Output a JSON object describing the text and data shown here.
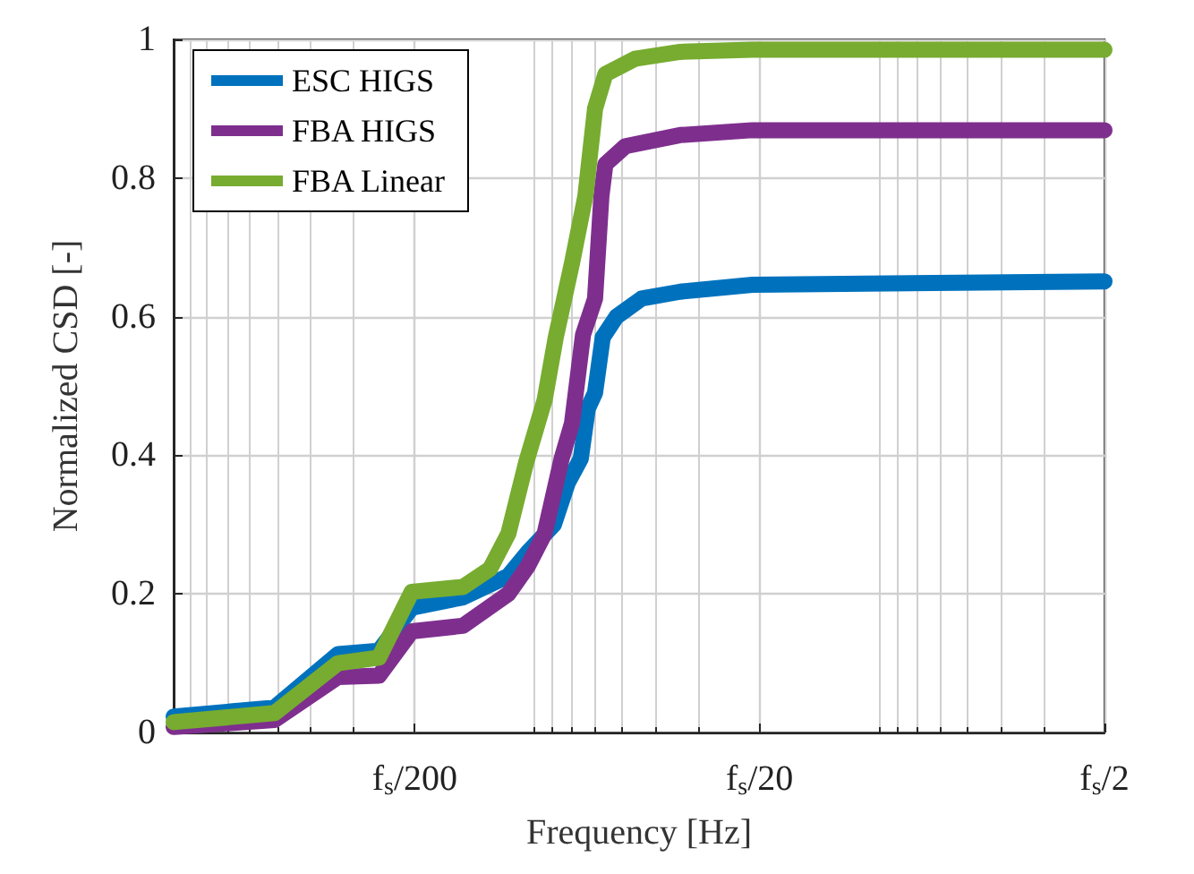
{
  "chart_data": {
    "type": "line",
    "xlabel": "Frequency [Hz]",
    "ylabel": "Normalized CSD [-]",
    "log": "x",
    "grid": true,
    "legend": "top left",
    "marker": "none",
    "line_style": "solid",
    "xlim": [
      1000,
      2
    ],
    "xticks": [
      {
        "value": 200,
        "label": "f$_{s}$/200"
      },
      {
        "value": 20,
        "label": "f$_{s}$/20"
      },
      {
        "value": 2,
        "label": "f$_{s}$/2"
      }
    ],
    "ylim": [
      0,
      1
    ],
    "yticks": [
      0,
      0.2,
      0.4,
      0.6,
      0.8,
      1
    ],
    "series": [
      {
        "name": "ESC HIGS",
        "color": "#0072bd",
        "x": [
          1000,
          510,
          334,
          254,
          204,
          145,
          107,
          94,
          79,
          72,
          66,
          63,
          60,
          57,
          52,
          44,
          34,
          21,
          2
        ],
        "values": [
          0.023,
          0.036,
          0.113,
          0.118,
          0.18,
          0.195,
          0.226,
          0.26,
          0.3,
          0.36,
          0.395,
          0.467,
          0.49,
          0.57,
          0.6,
          0.626,
          0.636,
          0.646,
          0.651
        ]
      },
      {
        "name": "FBA HIGS",
        "color": "#7e2f8e",
        "x": [
          1000,
          510,
          334,
          254,
          204,
          145,
          107,
          94,
          84,
          75,
          70,
          65,
          60,
          57.5,
          56,
          49,
          34,
          21,
          2
        ],
        "values": [
          0.008,
          0.018,
          0.08,
          0.082,
          0.146,
          0.154,
          0.2,
          0.24,
          0.287,
          0.395,
          0.446,
          0.574,
          0.626,
          0.774,
          0.82,
          0.846,
          0.862,
          0.869,
          0.869
        ]
      },
      {
        "name": "FBA Linear",
        "color": "#77ac30",
        "x": [
          1000,
          510,
          334,
          254,
          204,
          145,
          121,
          107,
          95,
          84,
          78,
          70,
          64,
          60,
          56,
          46,
          34,
          21,
          2
        ],
        "values": [
          0.015,
          0.028,
          0.1,
          0.108,
          0.203,
          0.21,
          0.236,
          0.287,
          0.39,
          0.48,
          0.57,
          0.677,
          0.774,
          0.9,
          0.95,
          0.972,
          0.982,
          0.985,
          0.985
        ]
      }
    ]
  }
}
